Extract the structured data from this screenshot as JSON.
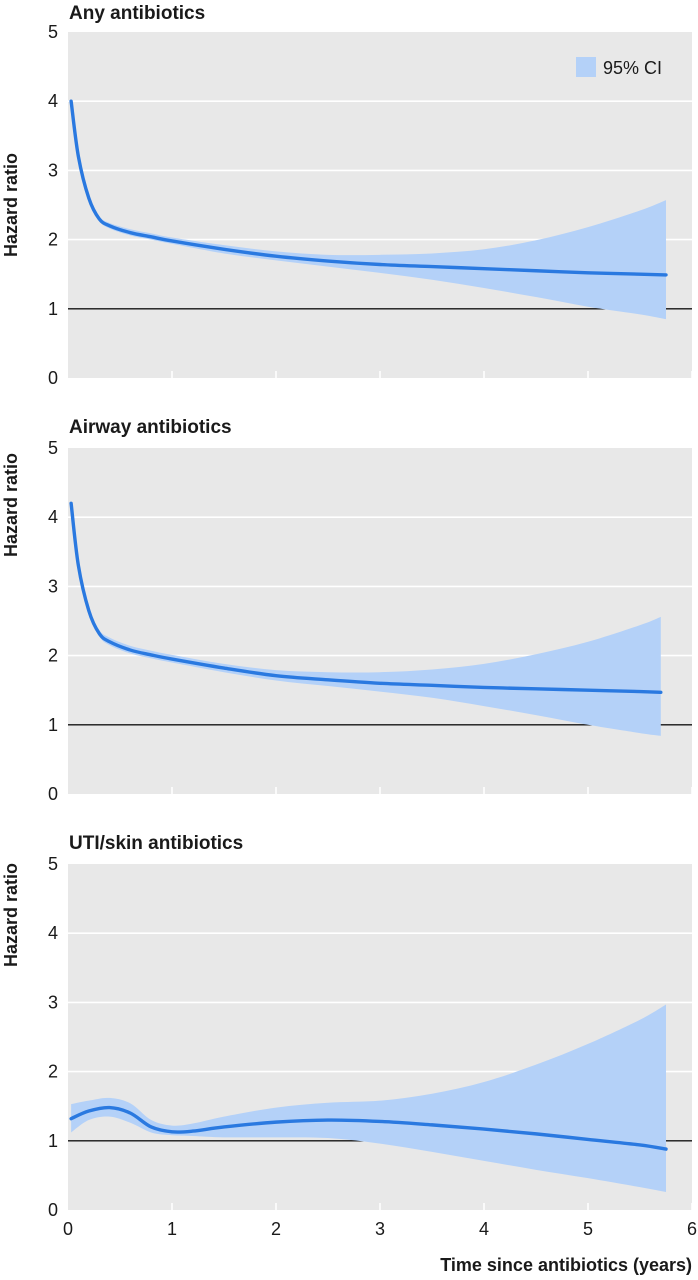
{
  "figure": {
    "xlabel": "Time since antibiotics (years)",
    "legend_label": "95% CI"
  },
  "colors": {
    "panel_bg": "#e8e8e8",
    "gridline": "#ffffff",
    "line": "#2a79e0",
    "ci_fill": "#b4d1f8",
    "reference_line": "#111111"
  },
  "chart_data": [
    {
      "type": "line",
      "title": "Any antibiotics",
      "ylabel": "Hazard ratio",
      "xlim": [
        0,
        6
      ],
      "ylim": [
        0,
        5
      ],
      "x_ticks": [
        0,
        1,
        2,
        3,
        4,
        5,
        6
      ],
      "y_ticks": [
        0,
        1,
        2,
        3,
        4,
        5
      ],
      "reference_y": 1,
      "legend": "top-right",
      "grid": true,
      "series": [
        {
          "name": "95% CI",
          "x": [
            0.03,
            0.1,
            0.2,
            0.3,
            0.4,
            0.6,
            0.8,
            1.0,
            1.5,
            2.0,
            2.5,
            3.0,
            3.5,
            4.0,
            4.5,
            5.0,
            5.5,
            5.75
          ],
          "y": [
            4.0,
            3.2,
            2.6,
            2.3,
            2.2,
            2.1,
            2.04,
            1.98,
            1.86,
            1.76,
            1.69,
            1.64,
            1.61,
            1.58,
            1.55,
            1.52,
            1.5,
            1.49
          ],
          "lower": [
            4.0,
            3.2,
            2.58,
            2.27,
            2.16,
            2.06,
            2.0,
            1.94,
            1.8,
            1.7,
            1.61,
            1.52,
            1.42,
            1.3,
            1.17,
            1.03,
            0.92,
            0.85
          ],
          "upper": [
            4.0,
            3.22,
            2.63,
            2.34,
            2.24,
            2.15,
            2.09,
            2.03,
            1.92,
            1.83,
            1.78,
            1.78,
            1.8,
            1.86,
            1.99,
            2.18,
            2.42,
            2.57
          ]
        }
      ]
    },
    {
      "type": "line",
      "title": "Airway antibiotics",
      "ylabel": "Hazard ratio",
      "xlim": [
        0,
        6
      ],
      "ylim": [
        0,
        5
      ],
      "x_ticks": [
        0,
        1,
        2,
        3,
        4,
        5,
        6
      ],
      "y_ticks": [
        0,
        1,
        2,
        3,
        4,
        5
      ],
      "reference_y": 1,
      "legend": "none",
      "grid": true,
      "series": [
        {
          "name": "95% CI",
          "x": [
            0.03,
            0.1,
            0.2,
            0.3,
            0.4,
            0.6,
            0.8,
            1.0,
            1.5,
            2.0,
            2.5,
            3.0,
            3.5,
            4.0,
            4.5,
            5.0,
            5.5,
            5.7
          ],
          "y": [
            4.2,
            3.3,
            2.65,
            2.32,
            2.2,
            2.08,
            2.01,
            1.95,
            1.82,
            1.71,
            1.65,
            1.6,
            1.57,
            1.54,
            1.52,
            1.5,
            1.48,
            1.47
          ],
          "lower": [
            4.2,
            3.3,
            2.62,
            2.28,
            2.15,
            2.03,
            1.96,
            1.9,
            1.76,
            1.64,
            1.56,
            1.48,
            1.39,
            1.27,
            1.14,
            1.0,
            0.88,
            0.84
          ],
          "upper": [
            4.2,
            3.32,
            2.68,
            2.37,
            2.26,
            2.14,
            2.07,
            2.01,
            1.88,
            1.79,
            1.76,
            1.76,
            1.8,
            1.88,
            2.02,
            2.2,
            2.44,
            2.56
          ]
        }
      ]
    },
    {
      "type": "line",
      "title": "UTI/skin antibiotics",
      "ylabel": "Hazard ratio",
      "xlim": [
        0,
        6
      ],
      "ylim": [
        0,
        5
      ],
      "x_ticks": [
        0,
        1,
        2,
        3,
        4,
        5,
        6
      ],
      "y_ticks": [
        0,
        1,
        2,
        3,
        4,
        5
      ],
      "reference_y": 1,
      "legend": "none",
      "grid": true,
      "series": [
        {
          "name": "95% CI",
          "x": [
            0.03,
            0.2,
            0.4,
            0.6,
            0.8,
            1.0,
            1.2,
            1.5,
            2.0,
            2.5,
            3.0,
            3.5,
            4.0,
            4.5,
            5.0,
            5.5,
            5.75
          ],
          "y": [
            1.32,
            1.43,
            1.48,
            1.4,
            1.2,
            1.13,
            1.14,
            1.2,
            1.27,
            1.3,
            1.28,
            1.23,
            1.17,
            1.1,
            1.02,
            0.94,
            0.88
          ],
          "lower": [
            1.12,
            1.3,
            1.35,
            1.26,
            1.12,
            1.08,
            1.07,
            1.05,
            1.05,
            1.04,
            0.96,
            0.84,
            0.71,
            0.58,
            0.46,
            0.33,
            0.26
          ],
          "upper": [
            1.53,
            1.58,
            1.62,
            1.54,
            1.3,
            1.22,
            1.25,
            1.35,
            1.48,
            1.55,
            1.58,
            1.68,
            1.85,
            2.1,
            2.4,
            2.75,
            2.97
          ]
        }
      ]
    }
  ]
}
